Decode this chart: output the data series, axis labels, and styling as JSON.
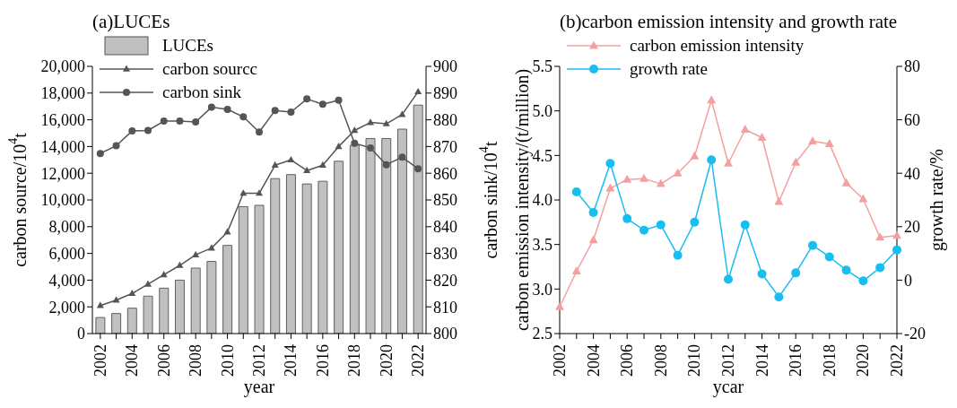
{
  "chart_data": [
    {
      "type": "bar",
      "title": "(a)LUCEs",
      "xlabel": "year",
      "ylabel": "carbon source/10$^{4}$t",
      "y2label": "carbon sink/10$^{4}$t",
      "legend": "top left",
      "categories": [
        "2002",
        null,
        "2004",
        null,
        "2006",
        null,
        "2008",
        null,
        "2010",
        null,
        "2012",
        null,
        "2014",
        null,
        "2016",
        null,
        "2018",
        null,
        "2020",
        null,
        "2022"
      ],
      "ylim": [
        0,
        20000
      ],
      "yticks": [
        0,
        {
          "value": 2000,
          "label": "2,000"
        },
        {
          "value": 4000,
          "label": "4,000"
        },
        {
          "value": 6000,
          "label": "6,000"
        },
        {
          "value": 8000,
          "label": "8,000"
        },
        {
          "value": 10000,
          "label": "10,000"
        },
        {
          "value": 12000,
          "label": "12,000"
        },
        {
          "value": 14000,
          "label": "14,000"
        },
        {
          "value": 16000,
          "label": "16,000"
        },
        {
          "value": 18000,
          "label": "18,000"
        },
        {
          "value": 20000,
          "label": "20,000"
        }
      ],
      "y2lim": [
        800,
        900
      ],
      "y2ticks": [
        800,
        810,
        820,
        830,
        840,
        850,
        860,
        870,
        880,
        890,
        900
      ],
      "series": [
        {
          "name": "LUCEs",
          "color": "#c0c0c0",
          "values": [
            1200,
            1500,
            1900,
            2800,
            3400,
            4000,
            4900,
            5400,
            6600,
            9500,
            9600,
            11600,
            11900,
            11200,
            11400,
            12900,
            14100,
            14600,
            14600,
            15300,
            17100
          ]
        },
        {
          "name": "carbon sourcc",
          "type": "line",
          "color": "#555555",
          "marker": "triangle",
          "values": [
            2100,
            2500,
            3000,
            3700,
            4400,
            5100,
            5900,
            6400,
            7600,
            10500,
            10500,
            12600,
            13000,
            12200,
            12600,
            14000,
            15200,
            15800,
            15700,
            16400,
            18100
          ]
        },
        {
          "name": "carbon sink",
          "type": "line",
          "color": "#555555",
          "marker": "circle",
          "axis": "y2",
          "values": [
            867.4,
            870.3,
            875.8,
            876.0,
            879.5,
            879.5,
            879.2,
            884.7,
            883.9,
            881.1,
            875.4,
            883.5,
            882.9,
            887.8,
            885.8,
            887.3,
            871.2,
            869.5,
            863.2,
            866.0,
            861.7
          ]
        }
      ]
    },
    {
      "type": "line",
      "title": "(b)carbon emission intensity and growth rate",
      "xlabel": "ycar",
      "ylabel": "carbon emission intensity/(t/million)",
      "y2label": "growth rate/%",
      "legend": "top left",
      "categories": [
        "2002",
        null,
        "2004",
        null,
        "2006",
        null,
        "2008",
        null,
        "2010",
        null,
        "2012",
        null,
        "2014",
        null,
        "2016",
        null,
        "2018",
        null,
        "2020",
        null,
        "2022"
      ],
      "ylim": [
        2.5,
        5.5
      ],
      "yticks": [
        2.5,
        {
          "value": 3,
          "label": "3.0"
        },
        3.5,
        {
          "value": 4,
          "label": "4.0"
        },
        4.5,
        {
          "value": 5,
          "label": "5.0"
        },
        5.5
      ],
      "y2lim": [
        -20,
        80
      ],
      "y2ticks": [
        -20,
        0,
        20,
        40,
        60,
        80
      ],
      "series": [
        {
          "name": "carbon emission intensity",
          "color": "#f5a0a0",
          "marker": "triangle",
          "values": [
            2.8,
            3.2,
            3.55,
            4.13,
            4.23,
            4.24,
            4.18,
            4.3,
            4.49,
            5.12,
            4.41,
            4.79,
            4.7,
            3.98,
            4.42,
            4.66,
            4.63,
            4.19,
            4.01,
            3.58,
            3.6
          ]
        },
        {
          "name": "growth rate",
          "color": "#19bef0",
          "marker": "circle",
          "axis": "y2",
          "values": [
            null,
            33,
            25.3,
            43.7,
            23,
            18.7,
            20.7,
            9.3,
            21.7,
            45,
            0.3,
            20.7,
            2.3,
            -6.3,
            2.7,
            13,
            8.7,
            3.7,
            -0.3,
            4.7,
            11.3
          ]
        }
      ]
    }
  ]
}
